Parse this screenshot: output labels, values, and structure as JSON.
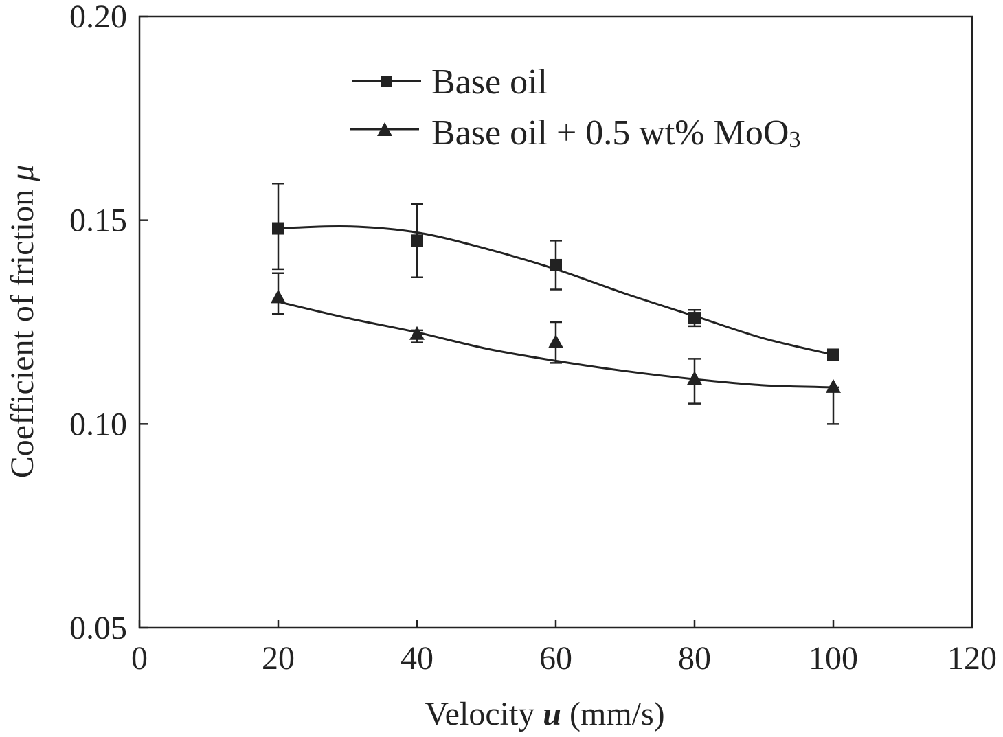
{
  "chart_data": {
    "type": "line",
    "title": "",
    "xlabel_prefix": "Velocity ",
    "xlabel_var": "u",
    "xlabel_suffix": " (mm/s)",
    "ylabel_prefix": "Coefficient of friction ",
    "ylabel_var": "μ",
    "xlim": [
      0,
      120
    ],
    "ylim": [
      0.05,
      0.2
    ],
    "xticks": [
      0,
      20,
      40,
      60,
      80,
      100,
      120
    ],
    "xtick_labels": [
      "0",
      "20",
      "40",
      "60",
      "80",
      "100",
      "120"
    ],
    "yticks": [
      0.05,
      0.1,
      0.15,
      0.2
    ],
    "ytick_labels": [
      "0.05",
      "0.10",
      "0.15",
      "0.20"
    ],
    "grid": false,
    "legend_position": "top-center",
    "series": [
      {
        "name": "Base oil",
        "legend_main": "Base oil",
        "legend_sub": "",
        "marker": "square",
        "x": [
          20,
          40,
          60,
          80,
          100
        ],
        "y": [
          0.148,
          0.145,
          0.139,
          0.126,
          0.117
        ],
        "err_low": [
          0.138,
          0.136,
          0.133,
          0.124,
          0.117
        ],
        "err_high": [
          0.159,
          0.154,
          0.145,
          0.128,
          0.117
        ],
        "fit": [
          [
            20,
            0.148
          ],
          [
            30,
            0.1485
          ],
          [
            40,
            0.147
          ],
          [
            50,
            0.143
          ],
          [
            60,
            0.138
          ],
          [
            70,
            0.132
          ],
          [
            80,
            0.1265
          ],
          [
            90,
            0.121
          ],
          [
            100,
            0.117
          ]
        ]
      },
      {
        "name": "Base oil + 0.5 wt% MoO3",
        "legend_main": "Base oil + 0.5 wt% MoO",
        "legend_sub": "3",
        "marker": "triangle",
        "x": [
          20,
          40,
          60,
          80,
          100
        ],
        "y": [
          0.131,
          0.122,
          0.12,
          0.111,
          0.109
        ],
        "err_low": [
          0.127,
          0.12,
          0.115,
          0.105,
          0.1
        ],
        "err_high": [
          0.137,
          0.123,
          0.125,
          0.116,
          0.109
        ],
        "fit": [
          [
            20,
            0.13
          ],
          [
            30,
            0.126
          ],
          [
            40,
            0.1225
          ],
          [
            50,
            0.1185
          ],
          [
            60,
            0.1155
          ],
          [
            70,
            0.113
          ],
          [
            80,
            0.111
          ],
          [
            90,
            0.1095
          ],
          [
            100,
            0.109
          ]
        ]
      }
    ]
  }
}
